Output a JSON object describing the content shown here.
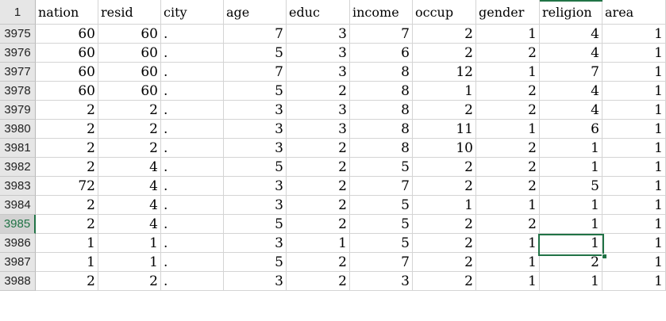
{
  "header": {
    "corner": "1",
    "columns": [
      "nation",
      "resid",
      "city",
      "age",
      "educ",
      "income",
      "occup",
      "gender",
      "religion",
      "area"
    ]
  },
  "rows": [
    {
      "id": "3975",
      "cells": [
        "60",
        "60",
        ".",
        "7",
        "3",
        "7",
        "2",
        "1",
        "4",
        "1"
      ]
    },
    {
      "id": "3976",
      "cells": [
        "60",
        "60",
        ".",
        "5",
        "3",
        "6",
        "2",
        "2",
        "4",
        "1"
      ]
    },
    {
      "id": "3977",
      "cells": [
        "60",
        "60",
        ".",
        "7",
        "3",
        "8",
        "12",
        "1",
        "7",
        "1"
      ]
    },
    {
      "id": "3978",
      "cells": [
        "60",
        "60",
        ".",
        "5",
        "2",
        "8",
        "1",
        "2",
        "4",
        "1"
      ]
    },
    {
      "id": "3979",
      "cells": [
        "2",
        "2",
        ".",
        "3",
        "3",
        "8",
        "2",
        "2",
        "4",
        "1"
      ]
    },
    {
      "id": "3980",
      "cells": [
        "2",
        "2",
        ".",
        "3",
        "3",
        "8",
        "11",
        "1",
        "6",
        "1"
      ]
    },
    {
      "id": "3981",
      "cells": [
        "2",
        "2",
        ".",
        "3",
        "2",
        "8",
        "10",
        "2",
        "1",
        "1"
      ]
    },
    {
      "id": "3982",
      "cells": [
        "2",
        "4",
        ".",
        "5",
        "2",
        "5",
        "2",
        "2",
        "1",
        "1"
      ]
    },
    {
      "id": "3983",
      "cells": [
        "72",
        "4",
        ".",
        "3",
        "2",
        "7",
        "2",
        "2",
        "5",
        "1"
      ]
    },
    {
      "id": "3984",
      "cells": [
        "2",
        "4",
        ".",
        "3",
        "2",
        "5",
        "1",
        "1",
        "1",
        "1"
      ]
    },
    {
      "id": "3985",
      "cells": [
        "2",
        "4",
        ".",
        "5",
        "2",
        "5",
        "2",
        "2",
        "1",
        "1"
      ]
    },
    {
      "id": "3986",
      "cells": [
        "1",
        "1",
        ".",
        "3",
        "1",
        "5",
        "2",
        "1",
        "1",
        "1"
      ]
    },
    {
      "id": "3987",
      "cells": [
        "1",
        "1",
        ".",
        "5",
        "2",
        "7",
        "2",
        "1",
        "2",
        "1"
      ]
    },
    {
      "id": "3988",
      "cells": [
        "2",
        "2",
        ".",
        "3",
        "2",
        "3",
        "2",
        "1",
        "1",
        "1"
      ]
    }
  ],
  "selection": {
    "row_id": "3985",
    "column": "religion"
  },
  "colors": {
    "accent": "#217346",
    "gridline": "#d4d4d4",
    "row_header_bg": "#e6e6e6"
  }
}
